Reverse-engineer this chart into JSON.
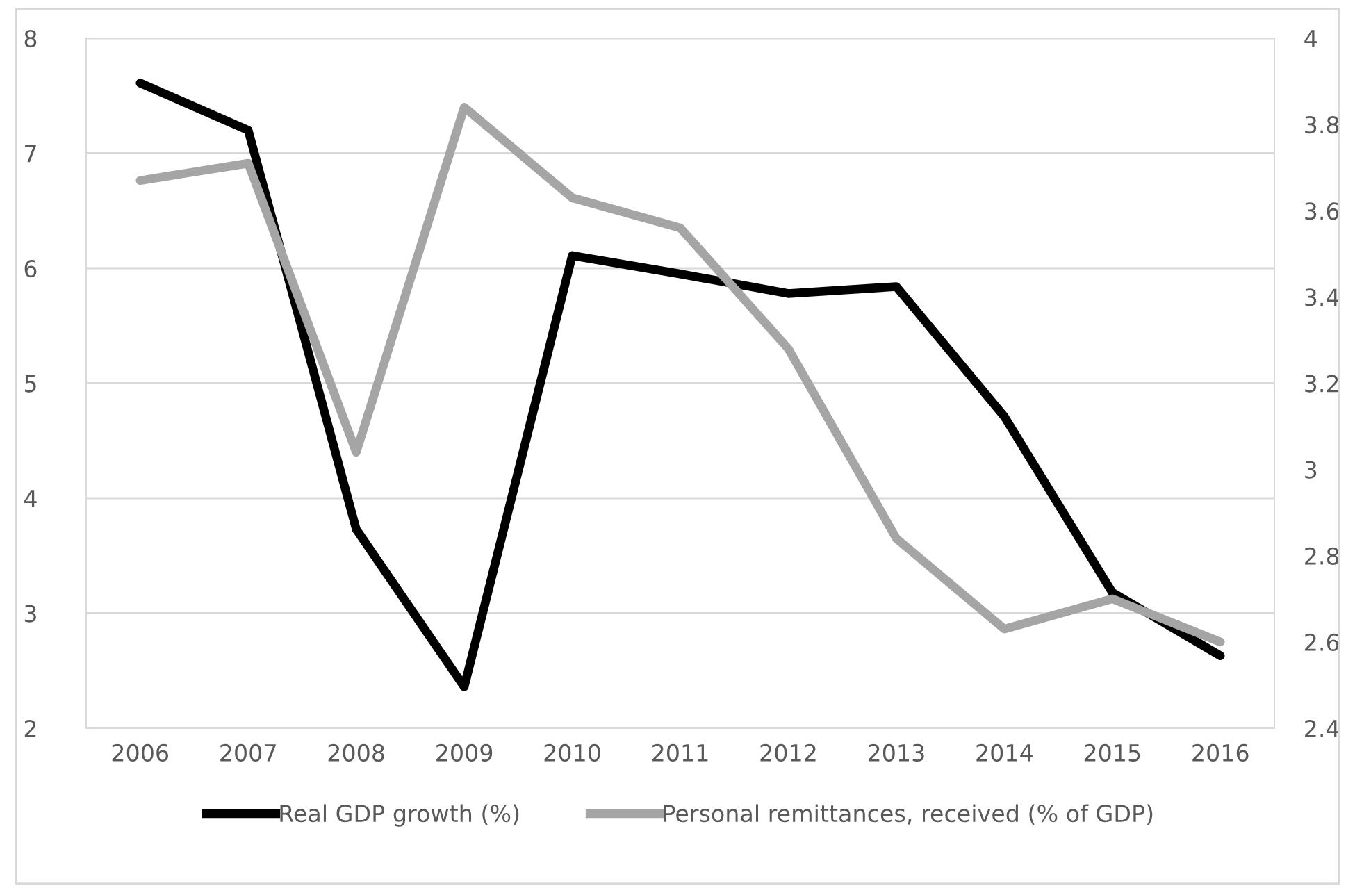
{
  "chart_data": {
    "type": "line",
    "categories": [
      "2006",
      "2007",
      "2008",
      "2009",
      "2010",
      "2011",
      "2012",
      "2013",
      "2014",
      "2015",
      "2016"
    ],
    "series": [
      {
        "name": "Real GDP growth (%)",
        "color": "#000000",
        "values": [
          7.61,
          7.2,
          3.73,
          2.36,
          6.11,
          5.95,
          5.78,
          5.84,
          4.71,
          3.18,
          2.63
        ]
      },
      {
        "name": "Personal remittances, received (% of GDP)",
        "color": "#a5a5a5",
        "axis": "y2",
        "values": [
          3.67,
          3.71,
          3.04,
          3.84,
          3.63,
          3.56,
          3.28,
          2.84,
          2.63,
          2.7,
          2.6
        ]
      }
    ],
    "ylim": [
      2,
      8
    ],
    "yticks": [
      2,
      3,
      4,
      5,
      6,
      7,
      8
    ],
    "y2lim": [
      2.4,
      4
    ],
    "y2ticks": [
      {
        "value": 2.4,
        "label": "2.4"
      },
      {
        "value": 2.6,
        "label": "2.6"
      },
      {
        "value": 2.8,
        "label": "2.8"
      },
      {
        "value": 3,
        "label": "3"
      },
      {
        "value": 3.2,
        "label": "3.2"
      },
      {
        "value": 3.4,
        "label": "3.4"
      },
      {
        "value": 3.6,
        "label": "3.6"
      },
      {
        "value": 3.8,
        "label": "3.8"
      },
      {
        "value": 4,
        "label": "4"
      }
    ],
    "grid": "y",
    "legend": "bottom",
    "marker": "none",
    "line_style": "solid"
  }
}
